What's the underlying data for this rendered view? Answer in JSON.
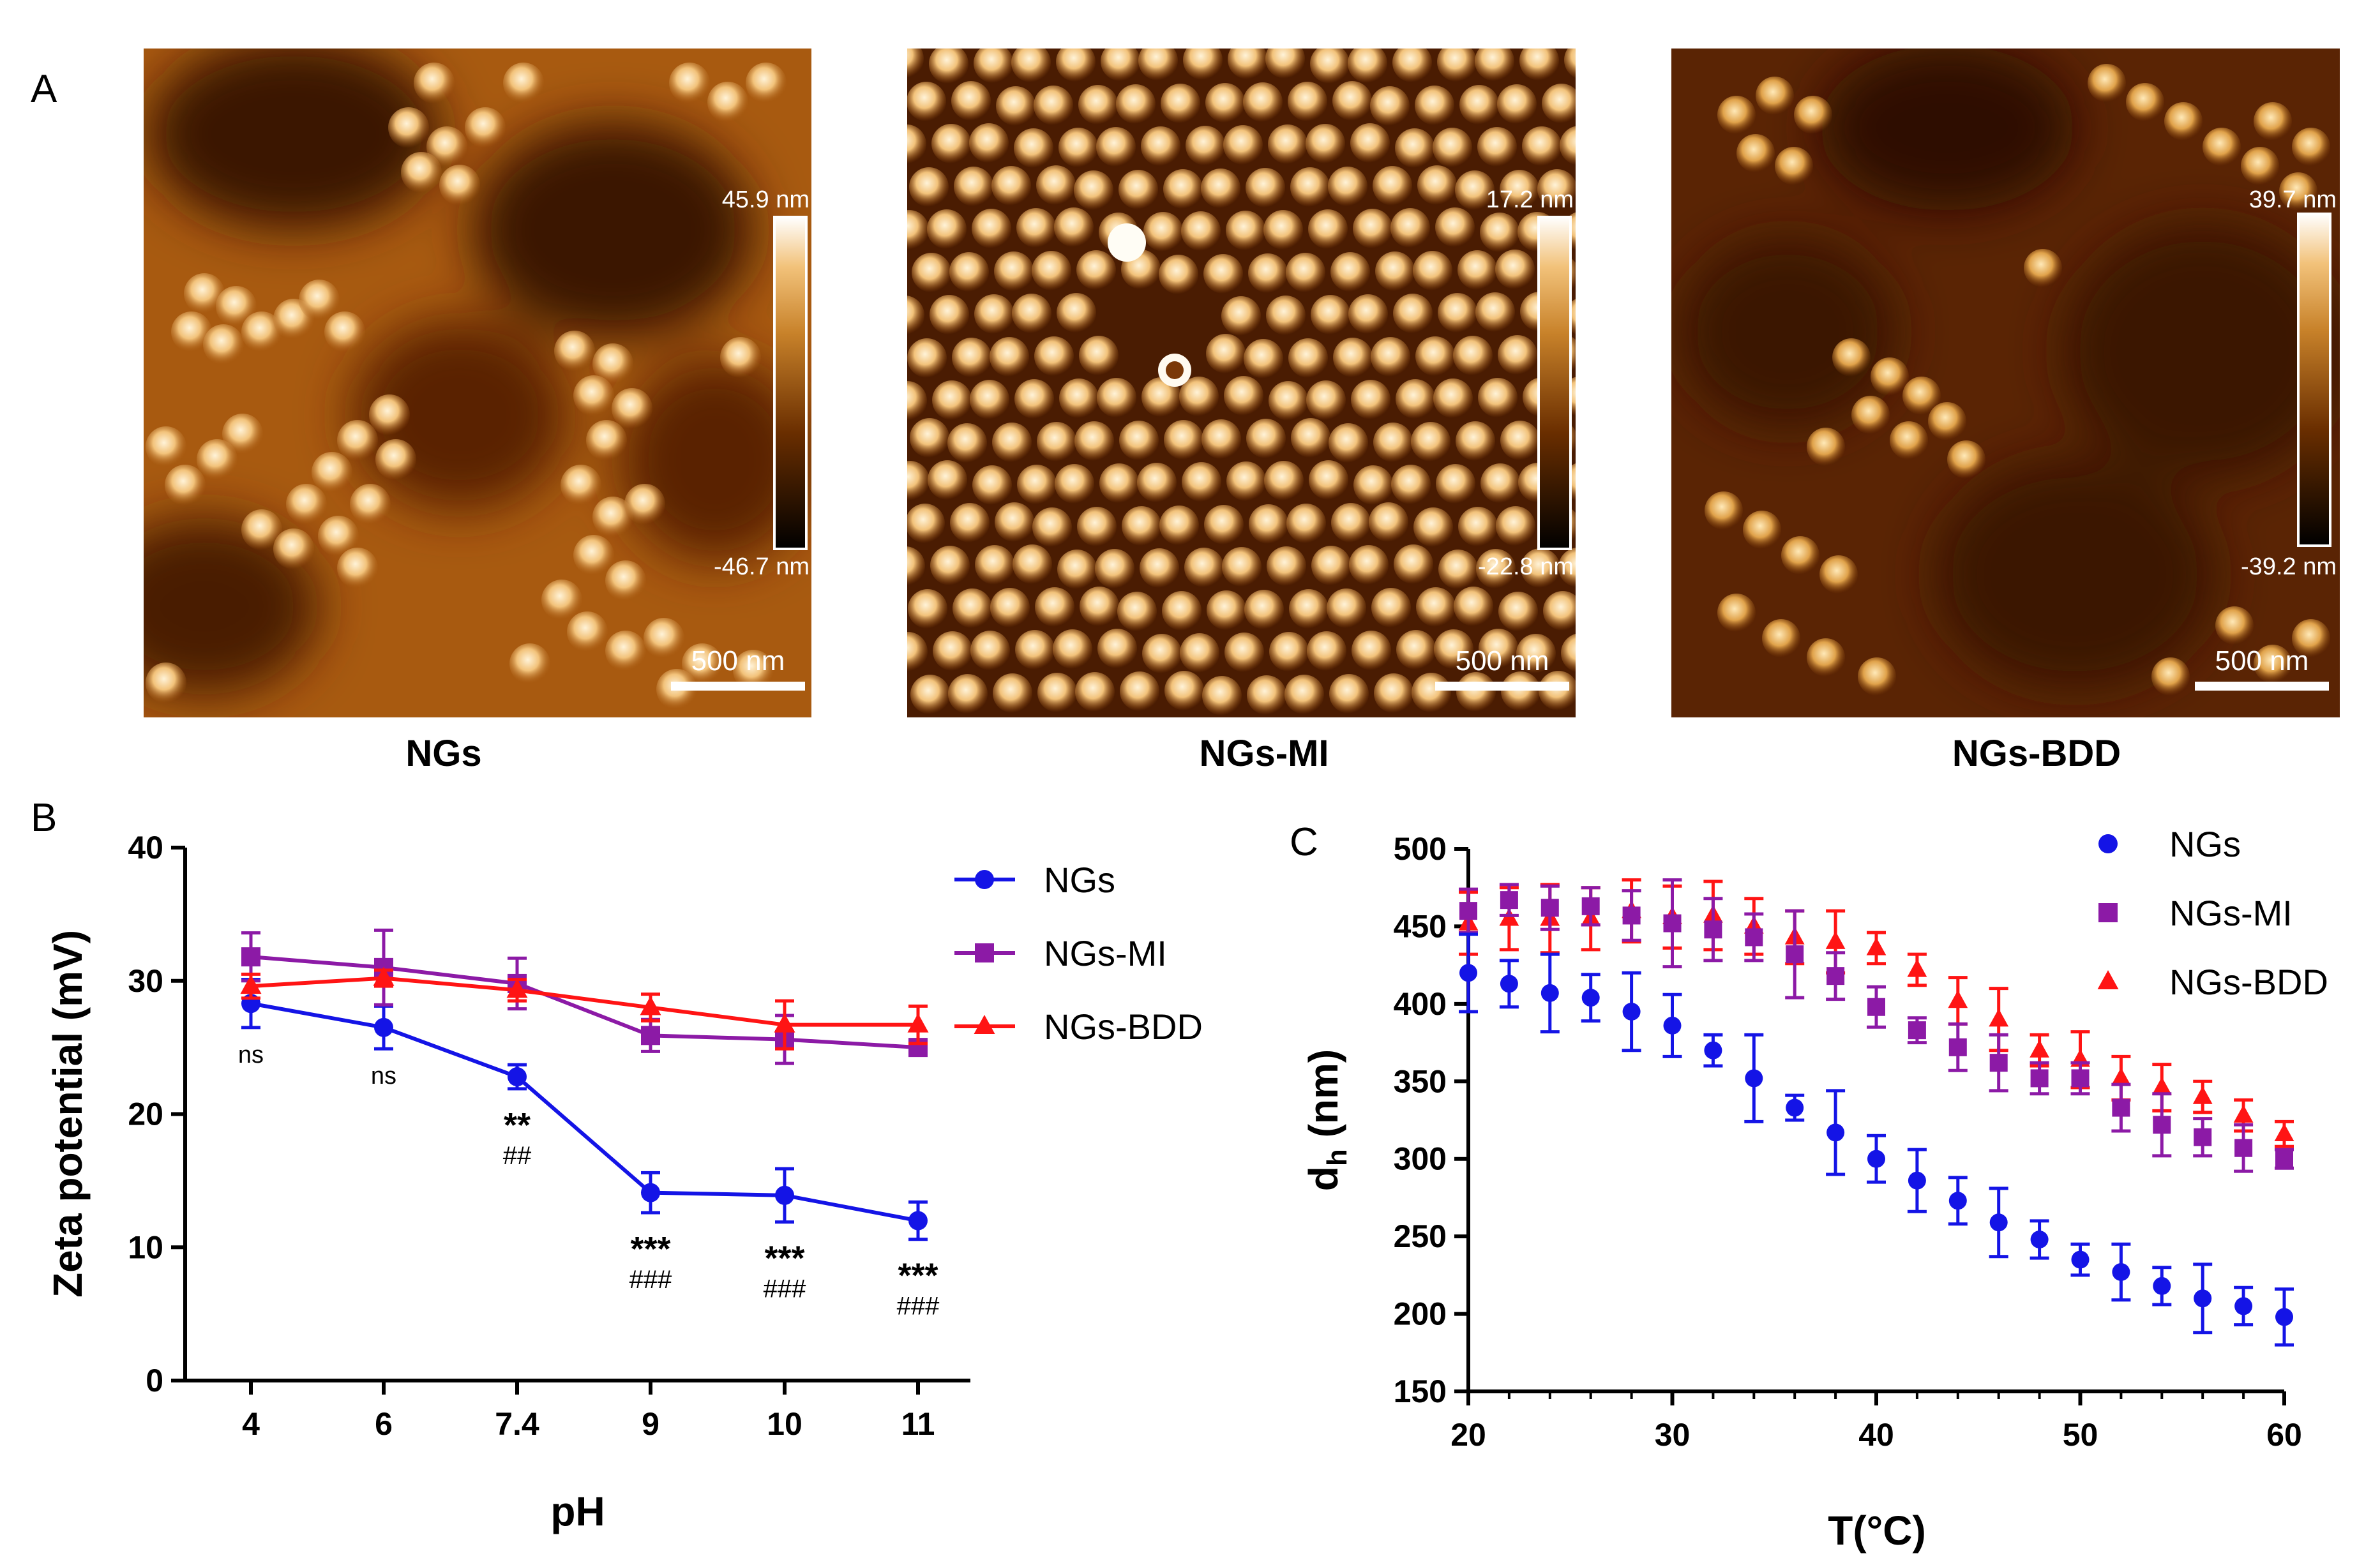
{
  "panel_labels": {
    "a": "A",
    "b": "B",
    "c": "C"
  },
  "colors": {
    "NGs": "#1414e6",
    "NGs-MI": "#8c1aa6",
    "NGs-BDD": "#ff1414",
    "afm_dark": "#3a1500",
    "afm_mid": "#a85a10",
    "afm_light": "#f2c27a",
    "afm_bright": "#fff3d8"
  },
  "afm_images": [
    {
      "caption": "NGs",
      "colorbar_max": "45.9 nm",
      "colorbar_min": "-46.7 nm",
      "scale_bar": "500 nm"
    },
    {
      "caption": "NGs-MI",
      "colorbar_max": "17.2 nm",
      "colorbar_min": "-22.8 nm",
      "scale_bar": "500 nm"
    },
    {
      "caption": "NGs-BDD",
      "colorbar_max": "39.7 nm",
      "colorbar_min": "-39.2 nm",
      "scale_bar": "500 nm"
    }
  ],
  "chart_data": [
    {
      "type": "line",
      "panel": "B",
      "title": "",
      "xlabel": "pH",
      "ylabel": "Zeta potential (mV)",
      "categories": [
        "4",
        "6",
        "7.4",
        "9",
        "10",
        "11"
      ],
      "ylim": [
        0,
        40
      ],
      "yticks": [
        0,
        10,
        20,
        30,
        40
      ],
      "legend": "top-right",
      "series": [
        {
          "name": "NGs",
          "marker": "circle",
          "values": [
            28.3,
            26.5,
            22.8,
            14.1,
            13.9,
            12.0
          ],
          "errors": [
            1.8,
            1.6,
            0.9,
            1.5,
            2.0,
            1.4
          ]
        },
        {
          "name": "NGs-MI",
          "marker": "square",
          "values": [
            31.8,
            31.0,
            29.8,
            25.9,
            25.6,
            25.0
          ],
          "errors": [
            1.8,
            2.8,
            1.9,
            1.2,
            1.8,
            0.4
          ]
        },
        {
          "name": "NGs-BDD",
          "marker": "triangle",
          "values": [
            29.6,
            30.2,
            29.3,
            28.0,
            26.7,
            26.7
          ],
          "errors": [
            0.9,
            0.6,
            0.8,
            1.0,
            1.8,
            1.4
          ]
        }
      ],
      "annotations": [
        {
          "category": "4",
          "stars": "",
          "hashes": "",
          "ns": "ns"
        },
        {
          "category": "6",
          "stars": "",
          "hashes": "",
          "ns": "ns"
        },
        {
          "category": "7.4",
          "stars": "**",
          "hashes": "##",
          "ns": ""
        },
        {
          "category": "9",
          "stars": "***",
          "hashes": "###",
          "ns": ""
        },
        {
          "category": "10",
          "stars": "***",
          "hashes": "###",
          "ns": ""
        },
        {
          "category": "11",
          "stars": "***",
          "hashes": "###",
          "ns": ""
        }
      ]
    },
    {
      "type": "scatter",
      "panel": "C",
      "title": "",
      "xlabel": "T(°C)",
      "ylabel_main": "d",
      "ylabel_sub": "h",
      "ylabel_unit": " (nm)",
      "xlim": [
        20,
        60
      ],
      "xticks": [
        20,
        30,
        40,
        50,
        60
      ],
      "ylim": [
        150,
        500
      ],
      "yticks": [
        150,
        200,
        250,
        300,
        350,
        400,
        450,
        500
      ],
      "legend": "top-right",
      "x": [
        20,
        22,
        24,
        26,
        28,
        30,
        32,
        34,
        36,
        38,
        40,
        42,
        44,
        46,
        48,
        50,
        52,
        54,
        56,
        58,
        60
      ],
      "series": [
        {
          "name": "NGs",
          "marker": "circle",
          "values": [
            420,
            413,
            407,
            404,
            395,
            386,
            370,
            352,
            333,
            317,
            300,
            286,
            273,
            259,
            248,
            235,
            227,
            218,
            210,
            205,
            198
          ],
          "errors": [
            25,
            15,
            25,
            15,
            25,
            20,
            10,
            28,
            8,
            27,
            15,
            20,
            15,
            22,
            12,
            10,
            18,
            12,
            22,
            12,
            18
          ]
        },
        {
          "name": "NGs-MI",
          "marker": "square",
          "values": [
            460,
            467,
            462,
            463,
            457,
            452,
            448,
            443,
            432,
            418,
            398,
            383,
            372,
            362,
            352,
            352,
            333,
            322,
            314,
            307,
            300
          ],
          "errors": [
            14,
            10,
            14,
            12,
            16,
            28,
            20,
            15,
            28,
            15,
            13,
            8,
            15,
            18,
            10,
            10,
            15,
            20,
            12,
            15,
            6
          ]
        },
        {
          "name": "NGs-BDD",
          "marker": "triangle",
          "values": [
            452,
            455,
            455,
            455,
            460,
            456,
            457,
            450,
            443,
            440,
            436,
            422,
            402,
            390,
            370,
            364,
            352,
            346,
            340,
            328,
            316
          ],
          "errors": [
            20,
            20,
            22,
            20,
            20,
            20,
            22,
            18,
            17,
            20,
            10,
            10,
            15,
            20,
            10,
            18,
            14,
            15,
            10,
            10,
            8
          ]
        }
      ]
    }
  ]
}
